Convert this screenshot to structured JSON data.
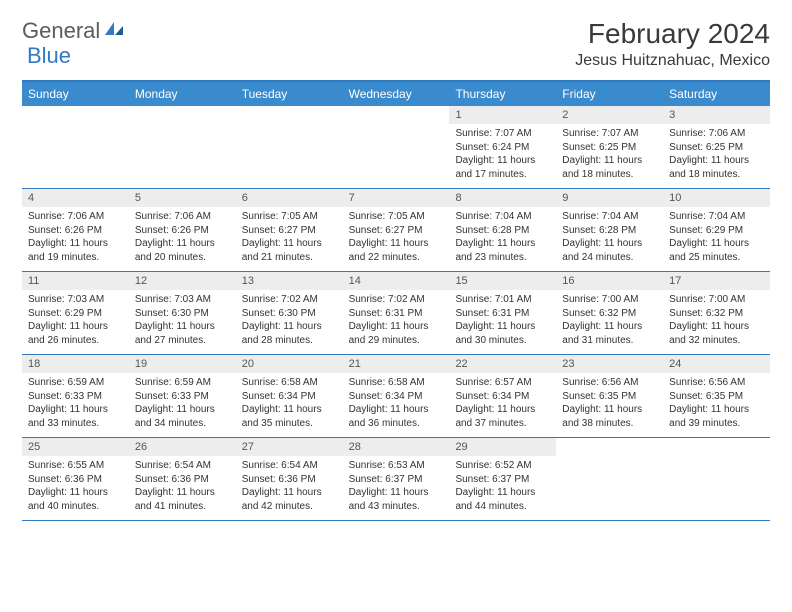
{
  "logo": {
    "word1": "General",
    "word2": "Blue"
  },
  "title": "February 2024",
  "location": "Jesus Huitznahuac, Mexico",
  "colors": {
    "header_bg": "#3a8bcd",
    "header_border": "#2f7ac0",
    "daynum_bg": "#ededed",
    "text": "#333333"
  },
  "day_names": [
    "Sunday",
    "Monday",
    "Tuesday",
    "Wednesday",
    "Thursday",
    "Friday",
    "Saturday"
  ],
  "weeks": [
    [
      {
        "n": "",
        "sr": "",
        "ss": "",
        "dl": ""
      },
      {
        "n": "",
        "sr": "",
        "ss": "",
        "dl": ""
      },
      {
        "n": "",
        "sr": "",
        "ss": "",
        "dl": ""
      },
      {
        "n": "",
        "sr": "",
        "ss": "",
        "dl": ""
      },
      {
        "n": "1",
        "sr": "Sunrise: 7:07 AM",
        "ss": "Sunset: 6:24 PM",
        "dl": "Daylight: 11 hours and 17 minutes."
      },
      {
        "n": "2",
        "sr": "Sunrise: 7:07 AM",
        "ss": "Sunset: 6:25 PM",
        "dl": "Daylight: 11 hours and 18 minutes."
      },
      {
        "n": "3",
        "sr": "Sunrise: 7:06 AM",
        "ss": "Sunset: 6:25 PM",
        "dl": "Daylight: 11 hours and 18 minutes."
      }
    ],
    [
      {
        "n": "4",
        "sr": "Sunrise: 7:06 AM",
        "ss": "Sunset: 6:26 PM",
        "dl": "Daylight: 11 hours and 19 minutes."
      },
      {
        "n": "5",
        "sr": "Sunrise: 7:06 AM",
        "ss": "Sunset: 6:26 PM",
        "dl": "Daylight: 11 hours and 20 minutes."
      },
      {
        "n": "6",
        "sr": "Sunrise: 7:05 AM",
        "ss": "Sunset: 6:27 PM",
        "dl": "Daylight: 11 hours and 21 minutes."
      },
      {
        "n": "7",
        "sr": "Sunrise: 7:05 AM",
        "ss": "Sunset: 6:27 PM",
        "dl": "Daylight: 11 hours and 22 minutes."
      },
      {
        "n": "8",
        "sr": "Sunrise: 7:04 AM",
        "ss": "Sunset: 6:28 PM",
        "dl": "Daylight: 11 hours and 23 minutes."
      },
      {
        "n": "9",
        "sr": "Sunrise: 7:04 AM",
        "ss": "Sunset: 6:28 PM",
        "dl": "Daylight: 11 hours and 24 minutes."
      },
      {
        "n": "10",
        "sr": "Sunrise: 7:04 AM",
        "ss": "Sunset: 6:29 PM",
        "dl": "Daylight: 11 hours and 25 minutes."
      }
    ],
    [
      {
        "n": "11",
        "sr": "Sunrise: 7:03 AM",
        "ss": "Sunset: 6:29 PM",
        "dl": "Daylight: 11 hours and 26 minutes."
      },
      {
        "n": "12",
        "sr": "Sunrise: 7:03 AM",
        "ss": "Sunset: 6:30 PM",
        "dl": "Daylight: 11 hours and 27 minutes."
      },
      {
        "n": "13",
        "sr": "Sunrise: 7:02 AM",
        "ss": "Sunset: 6:30 PM",
        "dl": "Daylight: 11 hours and 28 minutes."
      },
      {
        "n": "14",
        "sr": "Sunrise: 7:02 AM",
        "ss": "Sunset: 6:31 PM",
        "dl": "Daylight: 11 hours and 29 minutes."
      },
      {
        "n": "15",
        "sr": "Sunrise: 7:01 AM",
        "ss": "Sunset: 6:31 PM",
        "dl": "Daylight: 11 hours and 30 minutes."
      },
      {
        "n": "16",
        "sr": "Sunrise: 7:00 AM",
        "ss": "Sunset: 6:32 PM",
        "dl": "Daylight: 11 hours and 31 minutes."
      },
      {
        "n": "17",
        "sr": "Sunrise: 7:00 AM",
        "ss": "Sunset: 6:32 PM",
        "dl": "Daylight: 11 hours and 32 minutes."
      }
    ],
    [
      {
        "n": "18",
        "sr": "Sunrise: 6:59 AM",
        "ss": "Sunset: 6:33 PM",
        "dl": "Daylight: 11 hours and 33 minutes."
      },
      {
        "n": "19",
        "sr": "Sunrise: 6:59 AM",
        "ss": "Sunset: 6:33 PM",
        "dl": "Daylight: 11 hours and 34 minutes."
      },
      {
        "n": "20",
        "sr": "Sunrise: 6:58 AM",
        "ss": "Sunset: 6:34 PM",
        "dl": "Daylight: 11 hours and 35 minutes."
      },
      {
        "n": "21",
        "sr": "Sunrise: 6:58 AM",
        "ss": "Sunset: 6:34 PM",
        "dl": "Daylight: 11 hours and 36 minutes."
      },
      {
        "n": "22",
        "sr": "Sunrise: 6:57 AM",
        "ss": "Sunset: 6:34 PM",
        "dl": "Daylight: 11 hours and 37 minutes."
      },
      {
        "n": "23",
        "sr": "Sunrise: 6:56 AM",
        "ss": "Sunset: 6:35 PM",
        "dl": "Daylight: 11 hours and 38 minutes."
      },
      {
        "n": "24",
        "sr": "Sunrise: 6:56 AM",
        "ss": "Sunset: 6:35 PM",
        "dl": "Daylight: 11 hours and 39 minutes."
      }
    ],
    [
      {
        "n": "25",
        "sr": "Sunrise: 6:55 AM",
        "ss": "Sunset: 6:36 PM",
        "dl": "Daylight: 11 hours and 40 minutes."
      },
      {
        "n": "26",
        "sr": "Sunrise: 6:54 AM",
        "ss": "Sunset: 6:36 PM",
        "dl": "Daylight: 11 hours and 41 minutes."
      },
      {
        "n": "27",
        "sr": "Sunrise: 6:54 AM",
        "ss": "Sunset: 6:36 PM",
        "dl": "Daylight: 11 hours and 42 minutes."
      },
      {
        "n": "28",
        "sr": "Sunrise: 6:53 AM",
        "ss": "Sunset: 6:37 PM",
        "dl": "Daylight: 11 hours and 43 minutes."
      },
      {
        "n": "29",
        "sr": "Sunrise: 6:52 AM",
        "ss": "Sunset: 6:37 PM",
        "dl": "Daylight: 11 hours and 44 minutes."
      },
      {
        "n": "",
        "sr": "",
        "ss": "",
        "dl": ""
      },
      {
        "n": "",
        "sr": "",
        "ss": "",
        "dl": ""
      }
    ]
  ]
}
